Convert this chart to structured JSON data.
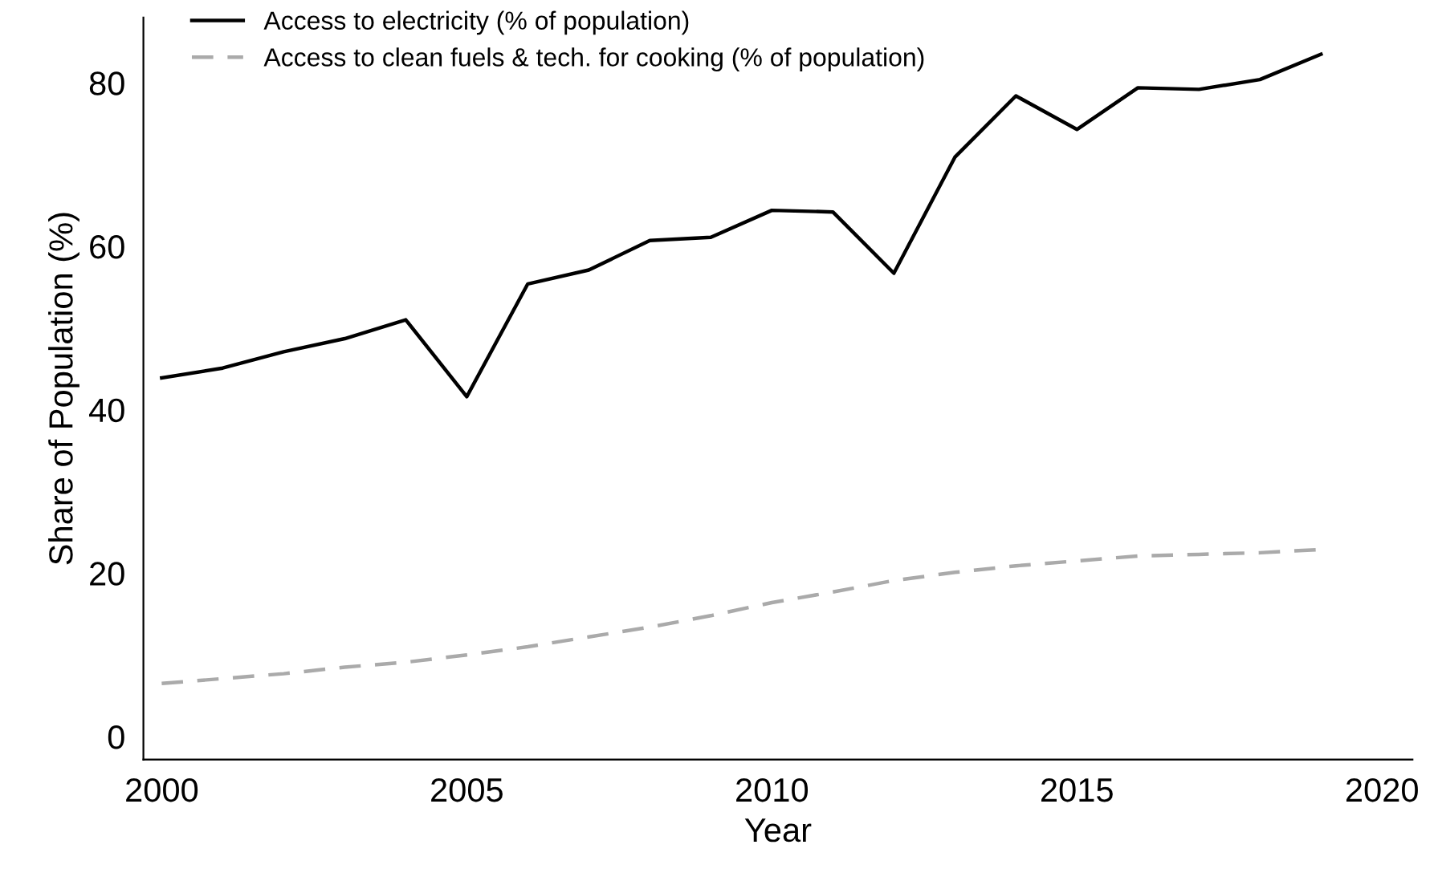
{
  "chart_data": {
    "type": "line",
    "xlabel": "Year",
    "ylabel": "Share of Population (%)",
    "x": [
      2000,
      2001,
      2002,
      2003,
      2004,
      2005,
      2006,
      2007,
      2008,
      2009,
      2010,
      2011,
      2012,
      2013,
      2014,
      2015,
      2016,
      2017,
      2018,
      2019
    ],
    "series": [
      {
        "name": "Access to electricity (% of population)",
        "color": "#000000",
        "line_style": "solid",
        "values": [
          43.9,
          45.1,
          47.1,
          48.7,
          51.0,
          41.6,
          55.4,
          57.1,
          60.7,
          61.1,
          64.4,
          64.2,
          56.7,
          70.9,
          78.4,
          74.3,
          79.4,
          79.2,
          80.4,
          83.5
        ]
      },
      {
        "name": "Access to clean fuels & tech. for cooking (% of population)",
        "color": "#aaaaaa",
        "line_style": "dashed",
        "values": [
          6.5,
          7.1,
          7.7,
          8.5,
          9.1,
          10.0,
          11.0,
          12.2,
          13.4,
          14.8,
          16.4,
          17.7,
          19.1,
          20.1,
          20.9,
          21.5,
          22.1,
          22.3,
          22.5,
          22.9
        ]
      }
    ],
    "xlim": [
      1999.7,
      2020.5
    ],
    "ylim": [
      -2.8,
      88
    ],
    "xticks": [
      2000,
      2005,
      2010,
      2015,
      2020
    ],
    "yticks": [
      0,
      20,
      40,
      60,
      80
    ],
    "grid": false,
    "legend": "top left",
    "marker": "none"
  }
}
